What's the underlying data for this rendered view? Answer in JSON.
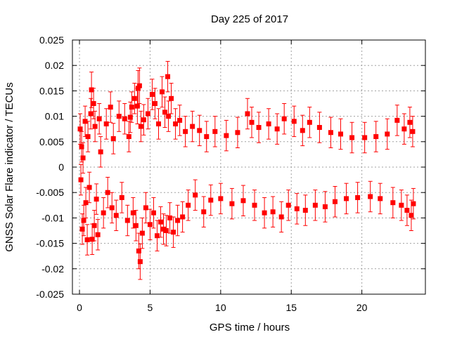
{
  "chart_data": {
    "type": "scatter",
    "title": "Day 225 of 2017",
    "xlabel": "GPS time / hours",
    "ylabel": "GNSS Solar Flare indicator / TECUs",
    "xlim": [
      -0.5,
      24.5
    ],
    "ylim": [
      -0.025,
      0.025
    ],
    "xticks": [
      0,
      5,
      10,
      15,
      20
    ],
    "yticks": [
      -0.025,
      -0.02,
      -0.015,
      -0.01,
      -0.005,
      0,
      0.005,
      0.01,
      0.015,
      0.02,
      0.025
    ],
    "ytick_labels": [
      "-0.025",
      "-0.02",
      "-0.015",
      "-0.01",
      "-0.005",
      "0",
      "0.005",
      "0.01",
      "0.015",
      "0.02",
      "0.025"
    ],
    "grid": true,
    "legend": "none",
    "colors": {
      "series": "#ff0000",
      "grid": "#a0a0a0",
      "axis": "#000000"
    },
    "series": [
      {
        "marker": "square",
        "error_bars": true,
        "points": [
          {
            "x": 0.05,
            "y": 0.0075,
            "err": 0.003
          },
          {
            "x": 0.1,
            "y": -0.0025,
            "err": 0.003
          },
          {
            "x": 0.15,
            "y": 0.004,
            "err": 0.003
          },
          {
            "x": 0.2,
            "y": -0.0122,
            "err": 0.003
          },
          {
            "x": 0.25,
            "y": 0.0018,
            "err": 0.003
          },
          {
            "x": 0.3,
            "y": -0.0105,
            "err": 0.003
          },
          {
            "x": 0.4,
            "y": 0.009,
            "err": 0.003
          },
          {
            "x": 0.45,
            "y": -0.007,
            "err": 0.003
          },
          {
            "x": 0.55,
            "y": -0.0143,
            "err": 0.003
          },
          {
            "x": 0.6,
            "y": 0.006,
            "err": 0.003
          },
          {
            "x": 0.7,
            "y": -0.004,
            "err": 0.003
          },
          {
            "x": 0.8,
            "y": 0.0105,
            "err": 0.003
          },
          {
            "x": 0.85,
            "y": 0.0152,
            "err": 0.0035
          },
          {
            "x": 0.9,
            "y": -0.0142,
            "err": 0.003
          },
          {
            "x": 1.0,
            "y": 0.0125,
            "err": 0.003
          },
          {
            "x": 1.05,
            "y": -0.0115,
            "err": 0.003
          },
          {
            "x": 1.1,
            "y": 0.008,
            "err": 0.003
          },
          {
            "x": 1.2,
            "y": -0.0063,
            "err": 0.003
          },
          {
            "x": 1.3,
            "y": -0.0133,
            "err": 0.003
          },
          {
            "x": 1.4,
            "y": 0.0095,
            "err": 0.003
          },
          {
            "x": 1.5,
            "y": 0.003,
            "err": 0.003
          },
          {
            "x": 1.7,
            "y": -0.009,
            "err": 0.003
          },
          {
            "x": 1.9,
            "y": 0.0085,
            "err": 0.003
          },
          {
            "x": 2.0,
            "y": -0.005,
            "err": 0.003
          },
          {
            "x": 2.2,
            "y": 0.0118,
            "err": 0.003
          },
          {
            "x": 2.3,
            "y": -0.008,
            "err": 0.003
          },
          {
            "x": 2.4,
            "y": 0.0056,
            "err": 0.003
          },
          {
            "x": 2.6,
            "y": -0.0095,
            "err": 0.003
          },
          {
            "x": 2.8,
            "y": 0.01,
            "err": 0.003
          },
          {
            "x": 3.0,
            "y": -0.006,
            "err": 0.003
          },
          {
            "x": 3.2,
            "y": 0.0095,
            "err": 0.003
          },
          {
            "x": 3.4,
            "y": -0.0105,
            "err": 0.003
          },
          {
            "x": 3.5,
            "y": 0.006,
            "err": 0.003
          },
          {
            "x": 3.6,
            "y": 0.0098,
            "err": 0.003
          },
          {
            "x": 3.7,
            "y": 0.0118,
            "err": 0.003
          },
          {
            "x": 3.8,
            "y": -0.009,
            "err": 0.003
          },
          {
            "x": 3.9,
            "y": 0.0135,
            "err": 0.003
          },
          {
            "x": 4.0,
            "y": -0.0115,
            "err": 0.003
          },
          {
            "x": 4.1,
            "y": 0.012,
            "err": 0.0035
          },
          {
            "x": 4.15,
            "y": 0.0155,
            "err": 0.0035
          },
          {
            "x": 4.2,
            "y": -0.0165,
            "err": 0.0035
          },
          {
            "x": 4.25,
            "y": 0.016,
            "err": 0.0035
          },
          {
            "x": 4.3,
            "y": -0.0186,
            "err": 0.0035
          },
          {
            "x": 4.35,
            "y": 0.008,
            "err": 0.003
          },
          {
            "x": 4.45,
            "y": -0.013,
            "err": 0.003
          },
          {
            "x": 4.55,
            "y": 0.0093,
            "err": 0.003
          },
          {
            "x": 4.7,
            "y": -0.008,
            "err": 0.003
          },
          {
            "x": 4.85,
            "y": 0.0105,
            "err": 0.003
          },
          {
            "x": 5.0,
            "y": -0.0113,
            "err": 0.003
          },
          {
            "x": 5.15,
            "y": 0.0143,
            "err": 0.003
          },
          {
            "x": 5.25,
            "y": -0.009,
            "err": 0.003
          },
          {
            "x": 5.35,
            "y": 0.0125,
            "err": 0.003
          },
          {
            "x": 5.5,
            "y": -0.0135,
            "err": 0.003
          },
          {
            "x": 5.6,
            "y": 0.0085,
            "err": 0.003
          },
          {
            "x": 5.75,
            "y": -0.0108,
            "err": 0.003
          },
          {
            "x": 5.85,
            "y": 0.0148,
            "err": 0.003
          },
          {
            "x": 5.95,
            "y": -0.0122,
            "err": 0.003
          },
          {
            "x": 6.05,
            "y": 0.0108,
            "err": 0.003
          },
          {
            "x": 6.15,
            "y": -0.0125,
            "err": 0.003
          },
          {
            "x": 6.25,
            "y": 0.0178,
            "err": 0.003
          },
          {
            "x": 6.3,
            "y": 0.01,
            "err": 0.003
          },
          {
            "x": 6.4,
            "y": -0.01,
            "err": 0.003
          },
          {
            "x": 6.5,
            "y": 0.0135,
            "err": 0.003
          },
          {
            "x": 6.65,
            "y": -0.0128,
            "err": 0.003
          },
          {
            "x": 6.8,
            "y": 0.0085,
            "err": 0.003
          },
          {
            "x": 6.95,
            "y": -0.0105,
            "err": 0.003
          },
          {
            "x": 7.1,
            "y": 0.0092,
            "err": 0.003
          },
          {
            "x": 7.3,
            "y": -0.0098,
            "err": 0.003
          },
          {
            "x": 7.5,
            "y": 0.007,
            "err": 0.003
          },
          {
            "x": 7.7,
            "y": -0.0075,
            "err": 0.003
          },
          {
            "x": 8.0,
            "y": 0.008,
            "err": 0.003
          },
          {
            "x": 8.2,
            "y": -0.0055,
            "err": 0.003
          },
          {
            "x": 8.5,
            "y": 0.0072,
            "err": 0.003
          },
          {
            "x": 8.8,
            "y": -0.0088,
            "err": 0.003
          },
          {
            "x": 9.0,
            "y": 0.006,
            "err": 0.003
          },
          {
            "x": 9.3,
            "y": -0.0065,
            "err": 0.003
          },
          {
            "x": 9.6,
            "y": 0.007,
            "err": 0.003
          },
          {
            "x": 10.0,
            "y": -0.0062,
            "err": 0.003
          },
          {
            "x": 10.4,
            "y": 0.0062,
            "err": 0.003
          },
          {
            "x": 10.8,
            "y": -0.0072,
            "err": 0.003
          },
          {
            "x": 11.2,
            "y": 0.0068,
            "err": 0.003
          },
          {
            "x": 11.6,
            "y": -0.0066,
            "err": 0.003
          },
          {
            "x": 11.9,
            "y": 0.0105,
            "err": 0.003
          },
          {
            "x": 12.2,
            "y": 0.0088,
            "err": 0.003
          },
          {
            "x": 12.4,
            "y": -0.0075,
            "err": 0.003
          },
          {
            "x": 12.7,
            "y": 0.0078,
            "err": 0.003
          },
          {
            "x": 13.1,
            "y": -0.009,
            "err": 0.003
          },
          {
            "x": 13.4,
            "y": 0.0085,
            "err": 0.003
          },
          {
            "x": 13.7,
            "y": -0.0088,
            "err": 0.003
          },
          {
            "x": 14.0,
            "y": 0.0075,
            "err": 0.003
          },
          {
            "x": 14.3,
            "y": -0.0098,
            "err": 0.003
          },
          {
            "x": 14.5,
            "y": 0.0095,
            "err": 0.003
          },
          {
            "x": 14.8,
            "y": -0.0075,
            "err": 0.003
          },
          {
            "x": 15.2,
            "y": 0.009,
            "err": 0.003
          },
          {
            "x": 15.4,
            "y": -0.0082,
            "err": 0.003
          },
          {
            "x": 15.8,
            "y": 0.0072,
            "err": 0.003
          },
          {
            "x": 16.0,
            "y": -0.0085,
            "err": 0.003
          },
          {
            "x": 16.3,
            "y": 0.0088,
            "err": 0.003
          },
          {
            "x": 16.7,
            "y": -0.0075,
            "err": 0.003
          },
          {
            "x": 17.0,
            "y": 0.0078,
            "err": 0.003
          },
          {
            "x": 17.4,
            "y": -0.0078,
            "err": 0.003
          },
          {
            "x": 17.8,
            "y": 0.0068,
            "err": 0.003
          },
          {
            "x": 18.1,
            "y": -0.0068,
            "err": 0.003
          },
          {
            "x": 18.5,
            "y": 0.0065,
            "err": 0.003
          },
          {
            "x": 18.9,
            "y": -0.0062,
            "err": 0.003
          },
          {
            "x": 19.3,
            "y": 0.0058,
            "err": 0.003
          },
          {
            "x": 19.7,
            "y": -0.006,
            "err": 0.003
          },
          {
            "x": 20.2,
            "y": 0.0058,
            "err": 0.003
          },
          {
            "x": 20.6,
            "y": -0.0058,
            "err": 0.003
          },
          {
            "x": 21.0,
            "y": 0.006,
            "err": 0.003
          },
          {
            "x": 21.3,
            "y": -0.0062,
            "err": 0.003
          },
          {
            "x": 21.8,
            "y": 0.0065,
            "err": 0.003
          },
          {
            "x": 22.2,
            "y": -0.007,
            "err": 0.003
          },
          {
            "x": 22.5,
            "y": 0.0092,
            "err": 0.003
          },
          {
            "x": 22.8,
            "y": -0.0075,
            "err": 0.003
          },
          {
            "x": 23.0,
            "y": 0.0075,
            "err": 0.003
          },
          {
            "x": 23.2,
            "y": -0.0085,
            "err": 0.003
          },
          {
            "x": 23.4,
            "y": 0.0088,
            "err": 0.003
          },
          {
            "x": 23.5,
            "y": -0.0095,
            "err": 0.003
          },
          {
            "x": 23.6,
            "y": 0.007,
            "err": 0.003
          },
          {
            "x": 23.65,
            "y": -0.0072,
            "err": 0.003
          }
        ]
      }
    ]
  }
}
